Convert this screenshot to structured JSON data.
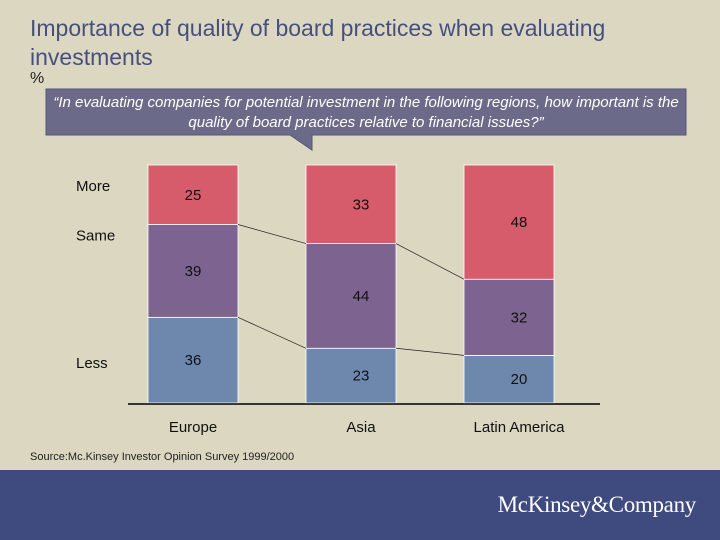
{
  "title": "Importance of quality of board practices when evaluating investments",
  "unit": "%",
  "question": "“In evaluating companies for potential investment in the following regions, how important is the quality of board practices relative to financial issues?”",
  "source": "Source:Mc.Kinsey Investor Opinion Survey 1999/2000",
  "brand": "McKinsey&Company",
  "colors": {
    "background": "#dcd7c0",
    "more": "#d65c6c",
    "same": "#7d6490",
    "less": "#6e88ad",
    "footer": "#3f4a7e",
    "callout": "#6b6b89"
  },
  "chart_data": {
    "type": "bar",
    "stacked": true,
    "title": "Importance of quality of board practices when evaluating investments",
    "ylabel": "%",
    "ylim": [
      0,
      100
    ],
    "categories": [
      "Europe",
      "Asia",
      "Latin America"
    ],
    "series": [
      {
        "name": "Less",
        "values": [
          36,
          23,
          20
        ]
      },
      {
        "name": "Same",
        "values": [
          39,
          44,
          32
        ]
      },
      {
        "name": "More",
        "values": [
          25,
          33,
          48
        ]
      }
    ]
  }
}
